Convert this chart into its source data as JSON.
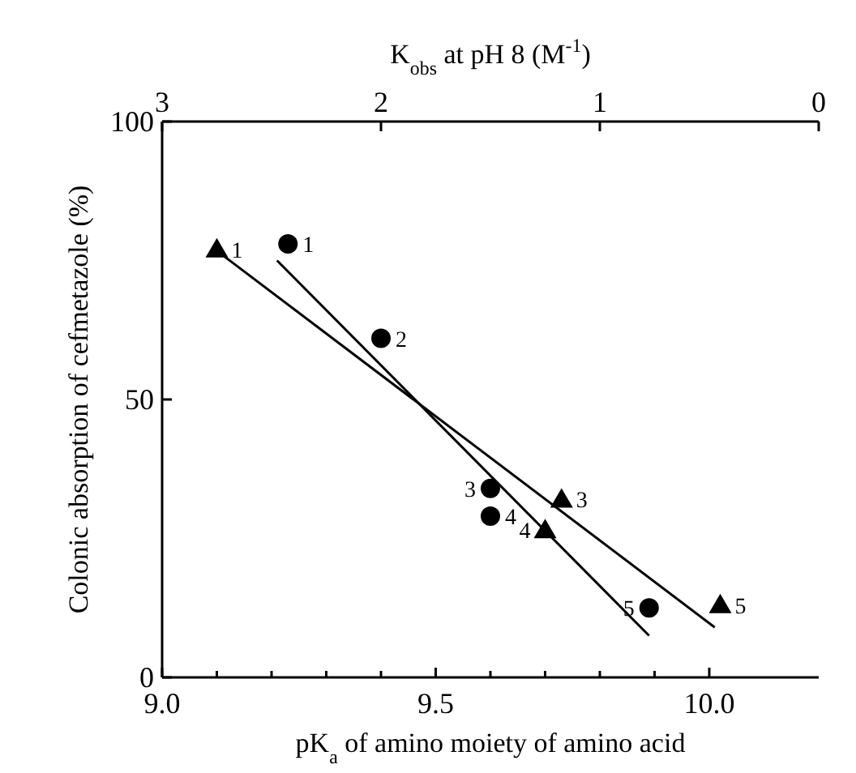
{
  "chart_data": {
    "type": "scatter",
    "xlabel": "pK$_{a}$ of amino moiety of amino acid",
    "ylabel": "Colonic absorption of cefmetazole (%)",
    "x2label": "K$_{obs}$ at pH 8 (M$^{-1}$)",
    "xlim": [
      9.0,
      10.2
    ],
    "xticks": [
      {
        "value": 9.0,
        "label": "9.0"
      },
      {
        "value": 9.1,
        "label": null
      },
      {
        "value": 9.2,
        "label": null
      },
      {
        "value": 9.3,
        "label": null
      },
      {
        "value": 9.4,
        "label": null
      },
      {
        "value": 9.5,
        "label": "9.5"
      },
      {
        "value": 9.6,
        "label": null
      },
      {
        "value": 9.7,
        "label": null
      },
      {
        "value": 9.8,
        "label": null
      },
      {
        "value": 9.9,
        "label": null
      },
      {
        "value": 10.0,
        "label": "10.0"
      }
    ],
    "x2lim": [
      3,
      0
    ],
    "x2ticks": [
      3,
      2,
      1,
      0
    ],
    "ylim": [
      0,
      100
    ],
    "yticks": [
      0,
      50,
      100
    ],
    "grid": false,
    "series": [
      {
        "marker": "circle",
        "color": "#000000",
        "x": [
          9.23,
          9.4,
          9.6,
          9.6,
          9.89
        ],
        "values": [
          78,
          61,
          34,
          29,
          12.5
        ]
      },
      {
        "marker": "triangle",
        "color": "#000000",
        "x": [
          9.1,
          9.73,
          9.7,
          10.02
        ],
        "values": [
          77,
          32,
          26.5,
          13
        ]
      },
      {
        "type": "line",
        "line_style": "solid",
        "color": "#000000",
        "x": [
          9.21,
          9.89
        ],
        "values": [
          75,
          7.5
        ]
      },
      {
        "type": "line",
        "line_style": "solid",
        "color": "#000000",
        "x": [
          9.11,
          10.01
        ],
        "values": [
          76,
          9
        ]
      }
    ],
    "annotations": [
      {
        "text": "1",
        "x": 9.23,
        "y": 78
      },
      {
        "text": "2",
        "x": 9.4,
        "y": 61
      },
      {
        "text": "3",
        "x": 9.6,
        "y": 34
      },
      {
        "text": "4",
        "x": 9.6,
        "y": 29
      },
      {
        "text": "5",
        "x": 9.89,
        "y": 12.5
      },
      {
        "text": "1",
        "x": 9.1,
        "y": 77
      },
      {
        "text": "3",
        "x": 9.73,
        "y": 32
      },
      {
        "text": "4",
        "x": 9.7,
        "y": 26.5
      },
      {
        "text": "5",
        "x": 10.02,
        "y": 13
      }
    ]
  }
}
